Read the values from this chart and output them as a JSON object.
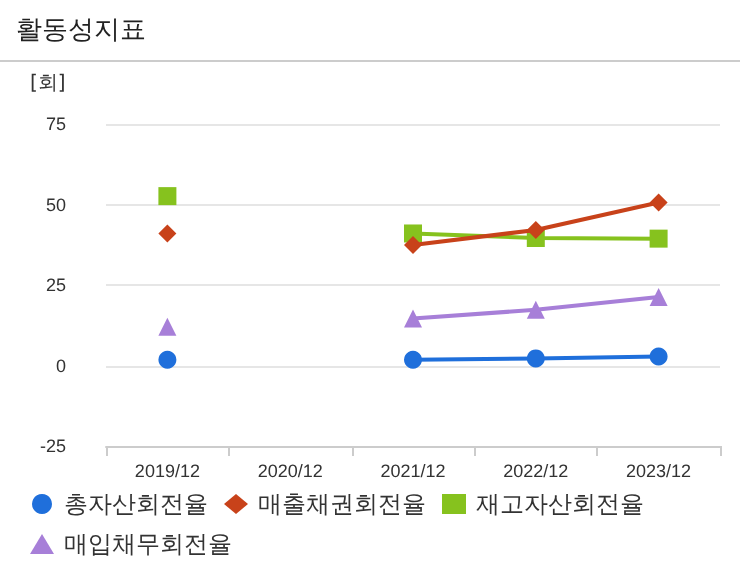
{
  "chart_data": {
    "type": "line",
    "title": "활동성지표",
    "ylabel": "[회]",
    "categories": [
      "2019/12",
      "2020/12",
      "2021/12",
      "2022/12",
      "2023/12"
    ],
    "series": [
      {
        "name": "총자산회전율",
        "color": "#1f6fdb",
        "marker": "circle",
        "values": [
          1.8,
          null,
          1.8,
          2.2,
          2.8
        ]
      },
      {
        "name": "매출채권회전율",
        "color": "#c8421a",
        "marker": "diamond",
        "values": [
          41,
          null,
          37.4,
          42.1,
          50.6
        ]
      },
      {
        "name": "재고자산회전율",
        "color": "#86c21e",
        "marker": "square",
        "values": [
          52.6,
          null,
          41,
          39.6,
          39.4
        ]
      },
      {
        "name": "매입채무회전율",
        "color": "#a77fd8",
        "marker": "triangle",
        "values": [
          12,
          null,
          14.6,
          17.3,
          21.3
        ]
      }
    ],
    "ylim": [
      -25,
      75
    ],
    "yticks": [
      -25,
      0,
      25,
      50,
      75
    ],
    "grid": "y",
    "legend": "bottom",
    "line_style": "solid"
  }
}
